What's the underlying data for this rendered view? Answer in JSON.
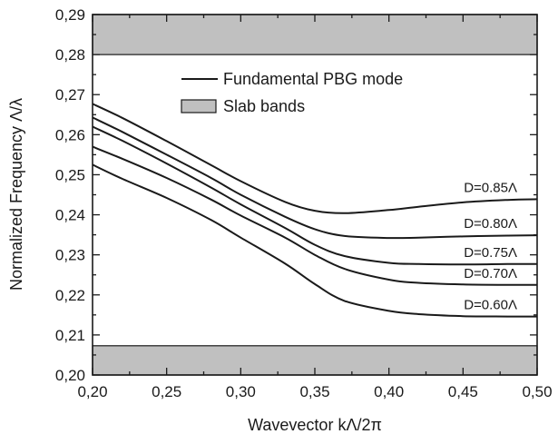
{
  "chart_data": {
    "type": "line",
    "xlabel": "Wavevector kΛ/2π",
    "ylabel": "Normalized Frequency Λ/λ",
    "xlim": [
      0.2,
      0.5
    ],
    "ylim": [
      0.2,
      0.29
    ],
    "x_ticks": [
      "0,20",
      "0,25",
      "0,30",
      "0,35",
      "0,40",
      "0,45",
      "0,50"
    ],
    "y_ticks": [
      "0,20",
      "0,21",
      "0,22",
      "0,23",
      "0,24",
      "0,25",
      "0,26",
      "0,27",
      "0,28",
      "0,29"
    ],
    "grid": false,
    "legend": {
      "position": "top-center",
      "entries": [
        {
          "label": "Fundamental PBG mode",
          "kind": "line",
          "color": "#1a1a1a"
        },
        {
          "label": "Slab bands",
          "kind": "patch",
          "color": "#c0c0c0"
        }
      ]
    },
    "slab_bands": [
      {
        "y_from": 0.28,
        "y_to": 0.29,
        "color": "#c0c0c0"
      },
      {
        "y_from": 0.2,
        "y_to": 0.2073,
        "color": "#c0c0c0"
      }
    ],
    "series": [
      {
        "name": "D=0.85Λ",
        "x": [
          0.2,
          0.22,
          0.25,
          0.28,
          0.3,
          0.33,
          0.35,
          0.37,
          0.4,
          0.42,
          0.45,
          0.48,
          0.5
        ],
        "y": [
          0.2677,
          0.2642,
          0.2584,
          0.2524,
          0.2484,
          0.2432,
          0.241,
          0.2404,
          0.2412,
          0.242,
          0.2431,
          0.2437,
          0.2439
        ]
      },
      {
        "name": "D=0.80Λ",
        "x": [
          0.2,
          0.22,
          0.25,
          0.28,
          0.3,
          0.33,
          0.35,
          0.37,
          0.4,
          0.42,
          0.45,
          0.48,
          0.5
        ],
        "y": [
          0.2643,
          0.2607,
          0.255,
          0.2492,
          0.245,
          0.2395,
          0.2364,
          0.2347,
          0.2342,
          0.2343,
          0.2346,
          0.2348,
          0.2349
        ]
      },
      {
        "name": "D=0.75Λ",
        "x": [
          0.2,
          0.22,
          0.25,
          0.28,
          0.3,
          0.33,
          0.35,
          0.37,
          0.4,
          0.42,
          0.45,
          0.48,
          0.5
        ],
        "y": [
          0.262,
          0.2585,
          0.2528,
          0.2468,
          0.2426,
          0.2367,
          0.2325,
          0.2297,
          0.228,
          0.2277,
          0.2276,
          0.2277,
          0.2277
        ]
      },
      {
        "name": "D=0.70Λ",
        "x": [
          0.2,
          0.22,
          0.25,
          0.28,
          0.3,
          0.33,
          0.35,
          0.37,
          0.4,
          0.42,
          0.45,
          0.48,
          0.5
        ],
        "y": [
          0.257,
          0.254,
          0.2492,
          0.2438,
          0.2398,
          0.2343,
          0.23,
          0.2265,
          0.2238,
          0.223,
          0.2226,
          0.2225,
          0.2225
        ]
      },
      {
        "name": "D=0.60Λ",
        "x": [
          0.2,
          0.22,
          0.25,
          0.28,
          0.3,
          0.33,
          0.35,
          0.37,
          0.4,
          0.42,
          0.45,
          0.48,
          0.5
        ],
        "y": [
          0.2525,
          0.249,
          0.2442,
          0.2387,
          0.2343,
          0.2278,
          0.2227,
          0.2185,
          0.216,
          0.2152,
          0.2147,
          0.2146,
          0.2146
        ]
      }
    ]
  }
}
